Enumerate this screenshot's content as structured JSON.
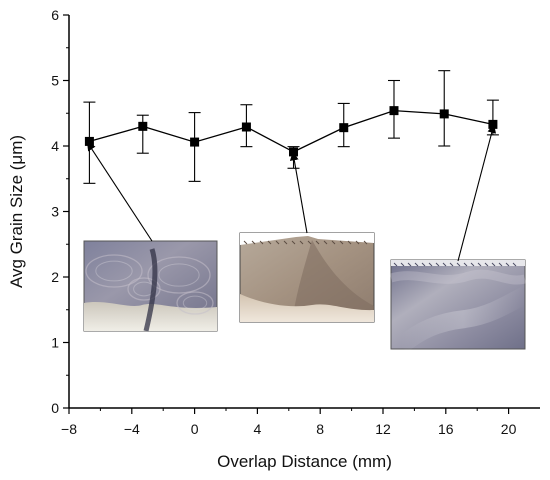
{
  "chart_data": {
    "type": "scatter",
    "xlabel": "Overlap Distance (mm)",
    "ylabel": "Avg Grain Size (μm)",
    "xlim": [
      -8,
      22
    ],
    "ylim": [
      0,
      6
    ],
    "x_ticks": [
      -8,
      -4,
      0,
      4,
      8,
      12,
      16,
      20
    ],
    "y_ticks": [
      0,
      1,
      2,
      3,
      4,
      5,
      6
    ],
    "grid": false,
    "legend": "none",
    "marker": "square",
    "line_style": "solid",
    "series": [
      {
        "color": "#000000",
        "x": [
          -6.7,
          -3.3,
          0,
          3.3,
          6.3,
          9.5,
          12.7,
          15.9,
          19.0
        ],
        "y": [
          4.07,
          4.3,
          4.06,
          4.29,
          3.91,
          4.28,
          4.54,
          4.49,
          4.33
        ],
        "err_low": [
          3.43,
          3.89,
          3.46,
          3.99,
          3.66,
          3.99,
          4.12,
          4.0,
          4.17
        ],
        "err_high": [
          4.67,
          4.47,
          4.51,
          4.63,
          3.99,
          4.65,
          5.0,
          5.15,
          4.7
        ]
      }
    ],
    "inset_images": [
      {
        "name": "inset-micrograph-left",
        "points_to_x": -6.7,
        "points_to_y": 4.07,
        "description_colors": [
          "#8f8fa6",
          "#6f6f88",
          "#b7b5c0",
          "#dbd8d2"
        ]
      },
      {
        "name": "inset-micrograph-middle",
        "points_to_x": 6.3,
        "points_to_y": 3.91,
        "description_colors": [
          "#ae9f90",
          "#8f7d6e",
          "#c2b3a3",
          "#e6dccf"
        ]
      },
      {
        "name": "inset-micrograph-right",
        "points_to_x": 19.0,
        "points_to_y": 4.33,
        "description_colors": [
          "#7b7b96",
          "#9d9cab",
          "#6e6f8c",
          "#b9b8c4"
        ]
      }
    ]
  }
}
